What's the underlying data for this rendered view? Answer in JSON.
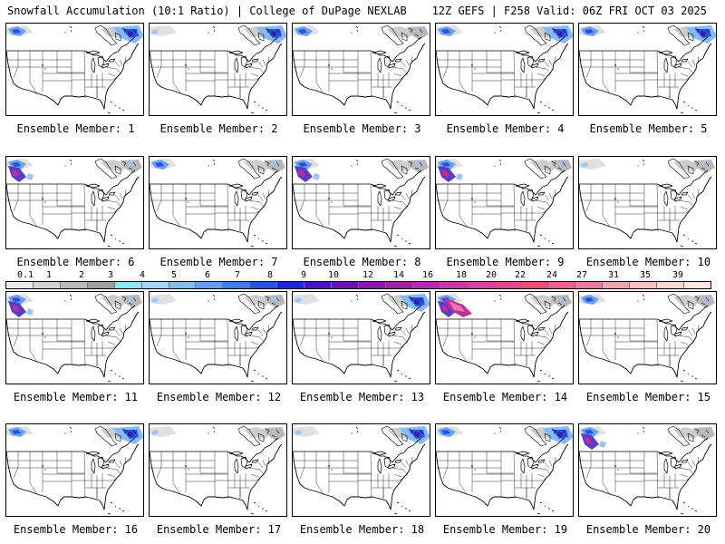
{
  "header": {
    "title_left": "Snowfall Accumulation (10:1 Ratio) | College of DuPage NEXLAB",
    "title_right": "12Z GEFS | F258 Valid: 06Z FRI OCT 03 2025"
  },
  "panel_label_prefix": "Ensemble Member:",
  "members": [
    {
      "label": "Ensemble Member: 1",
      "nw": "blue",
      "ne": "heavy"
    },
    {
      "label": "Ensemble Member: 2",
      "nw": "light",
      "ne": "heavy"
    },
    {
      "label": "Ensemble Member: 3",
      "nw": "blue",
      "ne": "light"
    },
    {
      "label": "Ensemble Member: 4",
      "nw": "blue",
      "ne": "heavy"
    },
    {
      "label": "Ensemble Member: 5",
      "nw": "blue",
      "ne": "heavy"
    },
    {
      "label": "Ensemble Member: 6",
      "nw": "heavy",
      "ne": "light"
    },
    {
      "label": "Ensemble Member: 7",
      "nw": "blue",
      "ne": "light"
    },
    {
      "label": "Ensemble Member: 8",
      "nw": "heavy",
      "ne": "light"
    },
    {
      "label": "Ensemble Member: 9",
      "nw": "heavy",
      "ne": "light"
    },
    {
      "label": "Ensemble Member: 10",
      "nw": "light",
      "ne": "light"
    },
    {
      "label": "Ensemble Member: 11",
      "nw": "heavy",
      "ne": "light"
    },
    {
      "label": "Ensemble Member: 12",
      "nw": "light",
      "ne": "light"
    },
    {
      "label": "Ensemble Member: 13",
      "nw": "light",
      "ne": "heavy"
    },
    {
      "label": "Ensemble Member: 14",
      "nw": "extreme",
      "ne": "light"
    },
    {
      "label": "Ensemble Member: 15",
      "nw": "blue",
      "ne": "light"
    },
    {
      "label": "Ensemble Member: 16",
      "nw": "blue",
      "ne": "heavy"
    },
    {
      "label": "Ensemble Member: 17",
      "nw": "light",
      "ne": "light"
    },
    {
      "label": "Ensemble Member: 18",
      "nw": "light",
      "ne": "heavy"
    },
    {
      "label": "Ensemble Member: 19",
      "nw": "blue",
      "ne": "heavy"
    },
    {
      "label": "Ensemble Member: 20",
      "nw": "heavy",
      "ne": "light"
    }
  ],
  "colorbar": {
    "labels": [
      "0.1",
      "1",
      "2",
      "3",
      "4",
      "5",
      "6",
      "7",
      "8",
      "9",
      "10",
      "12",
      "14",
      "16",
      "18",
      "20",
      "22",
      "24",
      "27",
      "31",
      "35",
      "39"
    ],
    "colors": [
      "#e8e8e8",
      "#d2d2d2",
      "#b8b8b8",
      "#9e9e9e",
      "#88e8f0",
      "#a8d4f8",
      "#86baf4",
      "#649ef0",
      "#3e7ee8",
      "#2258e0",
      "#1a2ad6",
      "#4a12c0",
      "#6a14b0",
      "#8818a8",
      "#a022a8",
      "#b42cb0",
      "#c836b4",
      "#d840a8",
      "#e04890",
      "#e85078",
      "#ee6090",
      "#f27aa0",
      "#f6a0b0",
      "#f8c0c0",
      "#fad8d0",
      "#fce8e0"
    ]
  },
  "colors": {
    "heavy_snow": "#2a4fe0",
    "extreme_snow": "#c02e9a",
    "trace_snow": "#c8c8c8",
    "map_lines": "#000000"
  }
}
